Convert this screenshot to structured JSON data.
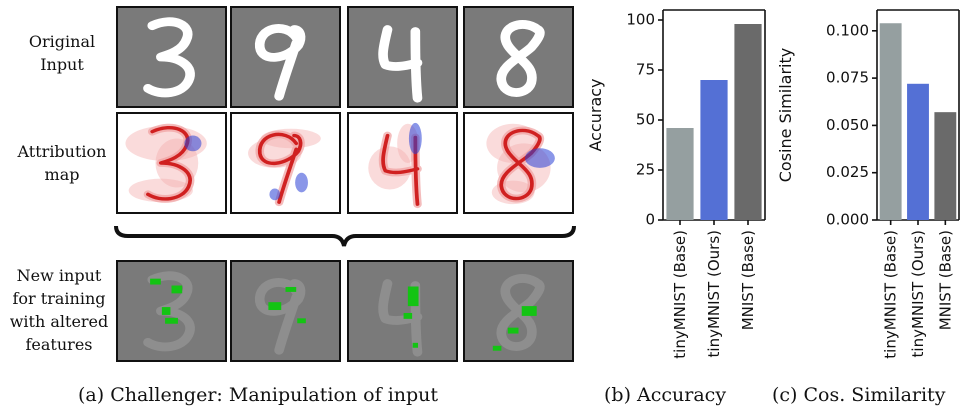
{
  "panel_a": {
    "rows": [
      {
        "label_lines": [
          "Original",
          "Input"
        ],
        "kind": "original"
      },
      {
        "label_lines": [
          "Attribution",
          "map"
        ],
        "kind": "attribution"
      },
      {
        "label_lines": [
          "New input",
          "for training",
          "with altered",
          "features"
        ],
        "kind": "altered"
      }
    ],
    "digits": [
      "3",
      "9",
      "4",
      "8"
    ],
    "caption": "(a) Challenger: Manipulation of input"
  },
  "colors": {
    "tile_gray": "#7a7a7a",
    "digit_white": "#ffffff",
    "digit_faded": "#8e8e8e",
    "attr_red": "#cc1111",
    "attr_blue": "#2a3fd6",
    "altered_green": "#13c413",
    "bar_base_tiny": "#959fa0",
    "bar_ours": "#5470d5",
    "bar_mnist": "#6a6a6a"
  },
  "chart_data": [
    {
      "type": "bar",
      "categories": [
        "tinyMNIST (Base)",
        "tinyMNIST (Ours)",
        "MNIST (Base)"
      ],
      "values": [
        46,
        70,
        98
      ],
      "ylabel": "Accuracy",
      "ylim": [
        0,
        105
      ],
      "yticks": [
        0,
        25,
        50,
        75,
        100
      ],
      "ytick_labels": [
        "0",
        "25",
        "50",
        "75",
        "100"
      ],
      "caption": "(b) Accuracy"
    },
    {
      "type": "bar",
      "categories": [
        "tinyMNIST (Base)",
        "tinyMNIST (Ours)",
        "MNIST (Base)"
      ],
      "values": [
        0.104,
        0.072,
        0.057
      ],
      "ylabel": "Cosine Similarity",
      "ylim": [
        0,
        0.111
      ],
      "yticks": [
        0.0,
        0.025,
        0.05,
        0.075,
        0.1
      ],
      "ytick_labels": [
        "0.000",
        "0.025",
        "0.050",
        "0.075",
        "0.100"
      ],
      "caption": "(c) Cos. Similarity"
    }
  ]
}
